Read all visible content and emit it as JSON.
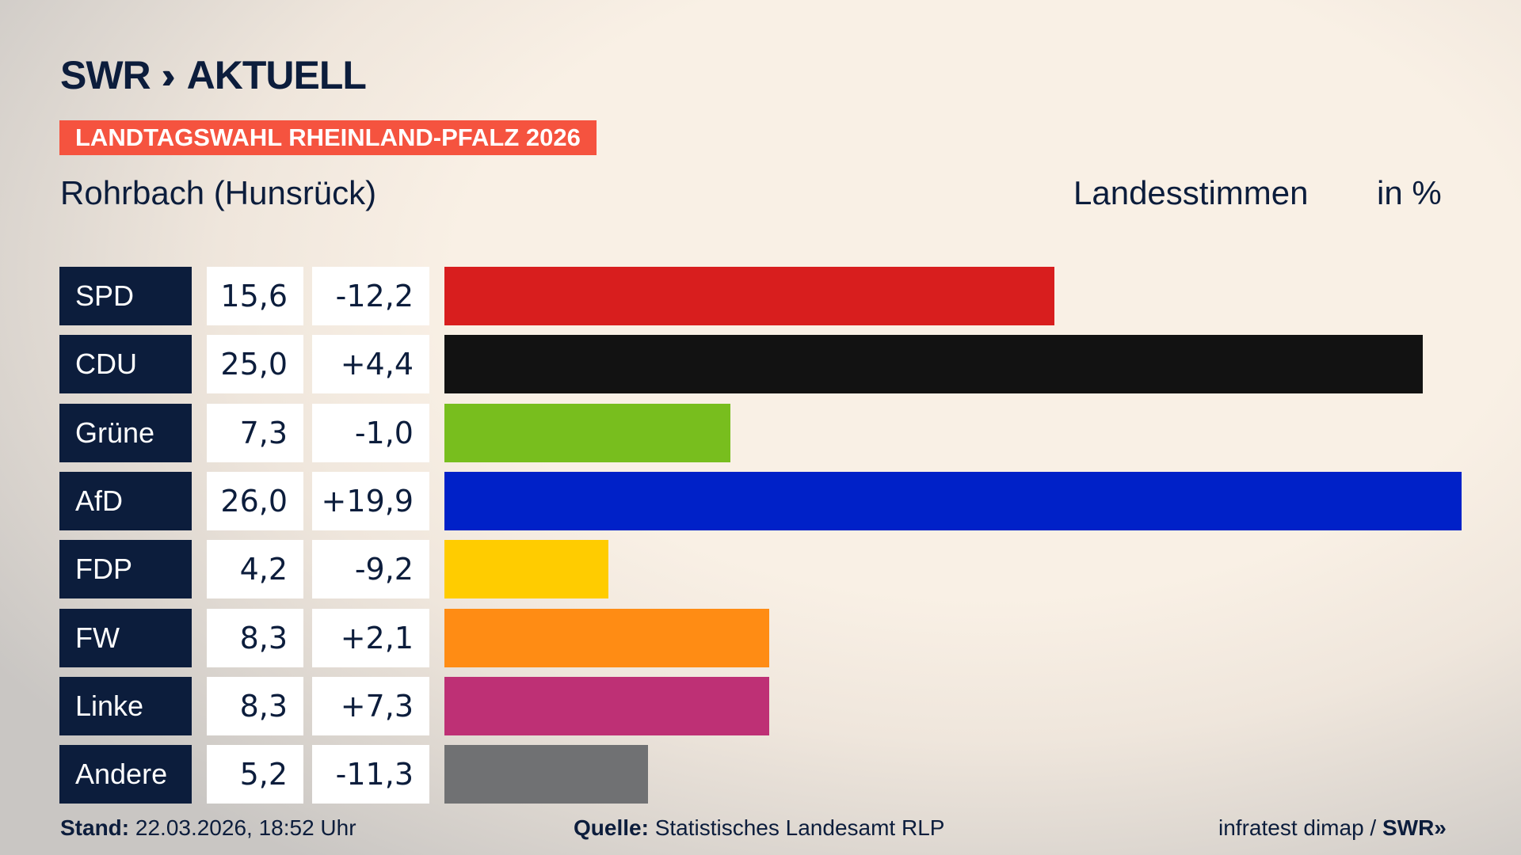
{
  "logo": {
    "brand": "SWR",
    "chevrons": "»",
    "name": "AKTUELL"
  },
  "banner": "LANDTAGSWAHL RHEINLAND-PFALZ 2026",
  "location": "Rohrbach (Hunsrück)",
  "vote_type": "Landesstimmen",
  "unit": "in %",
  "chart_data": {
    "type": "bar",
    "orientation": "horizontal",
    "categories": [
      "SPD",
      "CDU",
      "Grüne",
      "AfD",
      "FDP",
      "FW",
      "Linke",
      "Andere"
    ],
    "values": [
      15.6,
      25.0,
      7.3,
      26.0,
      4.2,
      8.3,
      8.3,
      5.2
    ],
    "value_labels": [
      "15,6",
      "25,0",
      "7,3",
      "26,0",
      "4,2",
      "8,3",
      "8,3",
      "5,2"
    ],
    "diff_labels": [
      "-12,2",
      "+4,4",
      "-1,0",
      "+19,9",
      "-9,2",
      "+2,1",
      "+7,3",
      "-11,3"
    ],
    "diffs": [
      -12.2,
      4.4,
      -1.0,
      19.9,
      -9.2,
      2.1,
      7.3,
      -11.3
    ],
    "colors": [
      "#d81e1e",
      "#121212",
      "#78be1e",
      "#0021c8",
      "#ffcc00",
      "#ff8c14",
      "#be3075",
      "#707173"
    ],
    "xlim": [
      0,
      26.0
    ]
  },
  "footer": {
    "stand_label": "Stand:",
    "stand_value": "22.03.2026, 18:52 Uhr",
    "source_label": "Quelle:",
    "source_value": "Statistisches Landesamt RLP",
    "credit": "infratest dimap /",
    "credit_brand": "SWR»"
  }
}
